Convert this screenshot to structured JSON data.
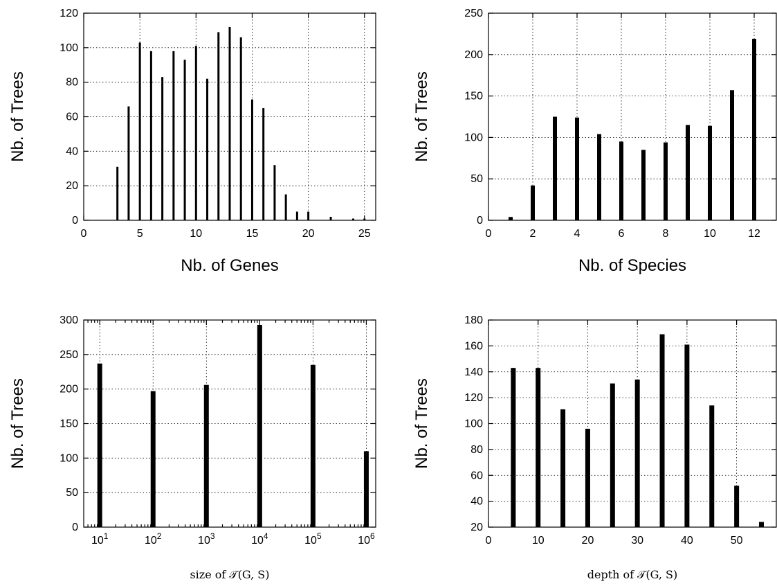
{
  "chart_data": [
    {
      "type": "bar",
      "xlabel": "Nb. of Genes",
      "ylabel": "Nb. of Trees",
      "xlim": [
        0,
        26
      ],
      "ylim": [
        0,
        120
      ],
      "xticks": [
        0,
        5,
        10,
        15,
        20,
        25
      ],
      "yticks": [
        0,
        20,
        40,
        60,
        80,
        100,
        120
      ],
      "grid": true,
      "x": [
        3,
        4,
        5,
        6,
        7,
        8,
        9,
        10,
        11,
        12,
        13,
        14,
        15,
        16,
        17,
        18,
        19,
        20,
        22,
        24,
        25
      ],
      "values": [
        31,
        66,
        103,
        98,
        83,
        98,
        93,
        101,
        82,
        109,
        112,
        106,
        70,
        65,
        32,
        15,
        5,
        5,
        2,
        1,
        1
      ]
    },
    {
      "type": "bar",
      "xlabel": "Nb. of Species",
      "ylabel": "Nb. of Trees",
      "xlim": [
        0,
        13
      ],
      "ylim": [
        0,
        250
      ],
      "xticks": [
        0,
        2,
        4,
        6,
        8,
        10,
        12
      ],
      "yticks": [
        0,
        50,
        100,
        150,
        200,
        250
      ],
      "grid": true,
      "x": [
        1,
        2,
        3,
        4,
        5,
        6,
        7,
        8,
        9,
        10,
        11,
        12
      ],
      "values": [
        4,
        42,
        125,
        124,
        104,
        95,
        85,
        94,
        115,
        114,
        157,
        219
      ]
    },
    {
      "type": "bar",
      "xlabel": "size of 𝒯(G, S)",
      "ylabel": "Nb. of Trees",
      "xscale": "log",
      "xlim": [
        5,
        1500000
      ],
      "ylim": [
        0,
        300
      ],
      "xticks": [
        "10^1",
        "10^2",
        "10^3",
        "10^4",
        "10^5",
        "10^6"
      ],
      "yticks": [
        0,
        50,
        100,
        150,
        200,
        250,
        300
      ],
      "grid": true,
      "x": [
        10,
        100,
        1000,
        10000,
        100000,
        1000000
      ],
      "values": [
        237,
        197,
        206,
        293,
        235,
        110
      ]
    },
    {
      "type": "bar",
      "xlabel": "depth of 𝒯(G, S)",
      "ylabel": "Nb. of Trees",
      "xlim": [
        0,
        58
      ],
      "ylim": [
        20,
        180
      ],
      "xticks": [
        0,
        10,
        20,
        30,
        40,
        50
      ],
      "yticks": [
        20,
        40,
        60,
        80,
        100,
        120,
        140,
        160,
        180
      ],
      "grid": true,
      "x": [
        5,
        10,
        15,
        20,
        25,
        30,
        35,
        40,
        45,
        50,
        55
      ],
      "values": [
        143,
        143,
        111,
        96,
        131,
        134,
        169,
        161,
        114,
        52,
        24
      ]
    }
  ]
}
